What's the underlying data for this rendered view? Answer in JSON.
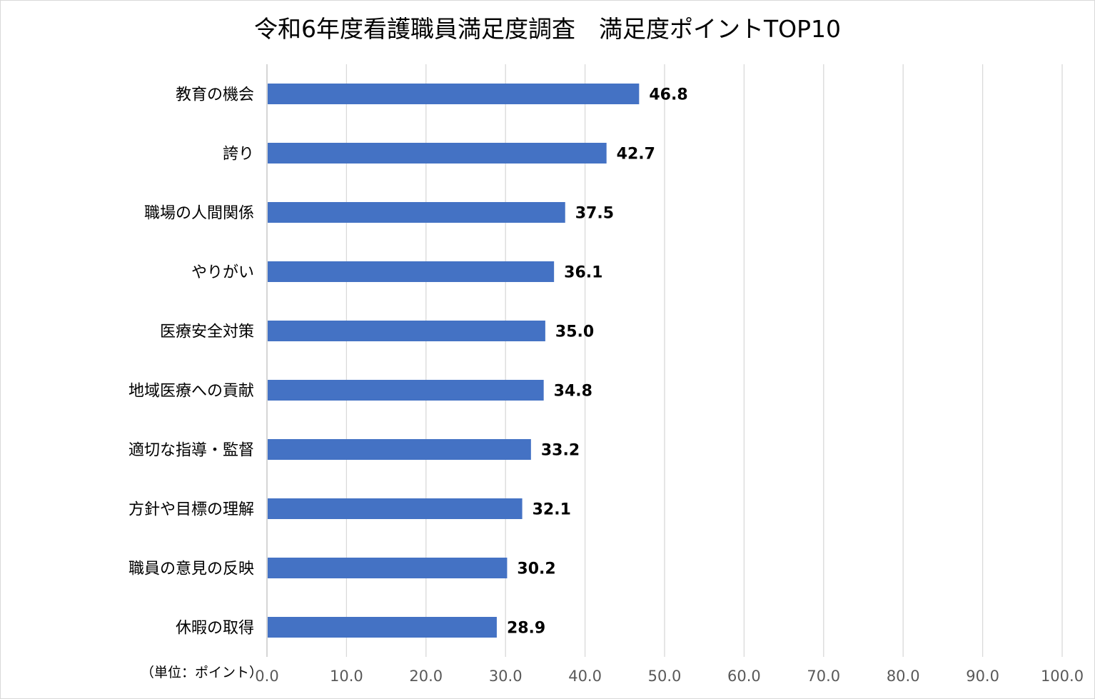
{
  "chart_data": {
    "type": "bar",
    "orientation": "horizontal",
    "title": "令和6年度看護職員満足度調査　満足度ポイントTOP10",
    "categories": [
      "教育の機会",
      "誇り",
      "職場の人間関係",
      "やりがい",
      "医療安全対策",
      "地域医療への貢献",
      "適切な指導・監督",
      "方針や目標の理解",
      "職員の意見の反映",
      "休暇の取得"
    ],
    "values": [
      46.8,
      42.7,
      37.5,
      36.1,
      35.0,
      34.8,
      33.2,
      32.1,
      30.2,
      28.9
    ],
    "value_labels": [
      "46.8",
      "42.7",
      "37.5",
      "36.1",
      "35.0",
      "34.8",
      "33.2",
      "32.1",
      "30.2",
      "28.9"
    ],
    "xlim": [
      0,
      100
    ],
    "x_ticks": [
      0,
      10,
      20,
      30,
      40,
      50,
      60,
      70,
      80,
      90,
      100
    ],
    "x_tick_labels": [
      "0.0",
      "10.0",
      "20.0",
      "30.0",
      "40.0",
      "50.0",
      "60.0",
      "70.0",
      "80.0",
      "90.0",
      "100.0"
    ],
    "unit_label": "（単位：ポイント）",
    "grid": true,
    "legend": "none",
    "colors": {
      "bar": "#4472c4",
      "grid": "#d9d9d9",
      "axis": "#bfbfbf",
      "tick_text": "#595959"
    }
  }
}
